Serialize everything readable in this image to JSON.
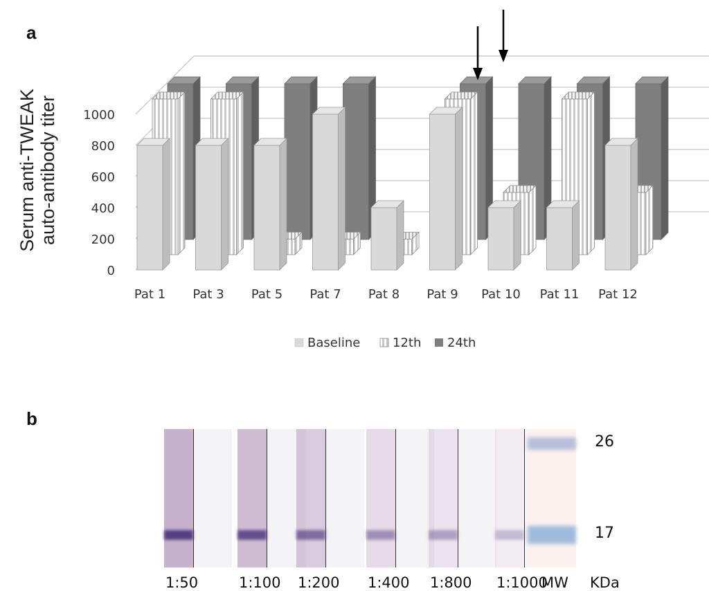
{
  "panel_a": {
    "label": "a"
  },
  "panel_b": {
    "label": "b"
  },
  "chart_data": {
    "type": "bar",
    "ylabel": "Serum anti-TWEAK auto-antibody titer",
    "ylabel_lines": [
      "Serum anti-TWEAK",
      "auto-antibody titer"
    ],
    "xlabel": "",
    "ylim": [
      0,
      1000
    ],
    "yticks": [
      "0",
      "200",
      "400",
      "600",
      "800",
      "1000"
    ],
    "categories": [
      "Pat 1",
      "Pat 3",
      "Pat 5",
      "Pat 7",
      "Pat 8",
      "Pat 9",
      "Pat 10",
      "Pat 11",
      "Pat 12"
    ],
    "series": [
      {
        "name": "Baseline",
        "values": [
          800,
          800,
          800,
          1000,
          400,
          1000,
          400,
          400,
          800
        ],
        "color": "#d9d9d9",
        "pattern": "solid"
      },
      {
        "name": "12th",
        "values": [
          1000,
          1000,
          100,
          100,
          100,
          1000,
          400,
          1000,
          400
        ],
        "color": "#ffffff",
        "pattern": "vertical-stripes"
      },
      {
        "name": "24th",
        "values": [
          1000,
          1000,
          1000,
          1000,
          null,
          1000,
          1000,
          1000,
          1000
        ],
        "color": "#7f7f7f",
        "pattern": "solid"
      }
    ],
    "legend_position": "bottom",
    "grid": true,
    "annotations": [
      "arrow over Pat 9",
      "arrow over Pat 10"
    ]
  },
  "blot": {
    "lanes": [
      {
        "label": "1:50",
        "intensity": 1.0
      },
      {
        "label": "1:100",
        "intensity": 0.85
      },
      {
        "label": "1:200",
        "intensity": 0.6
      },
      {
        "label": "1:400",
        "intensity": 0.35
      },
      {
        "label": "1:800",
        "intensity": 0.25
      },
      {
        "label": "1:1000",
        "intensity": 0.1
      }
    ],
    "marker_label": "MW",
    "unit_label": "KDa",
    "markers": [
      "26",
      "17"
    ]
  }
}
